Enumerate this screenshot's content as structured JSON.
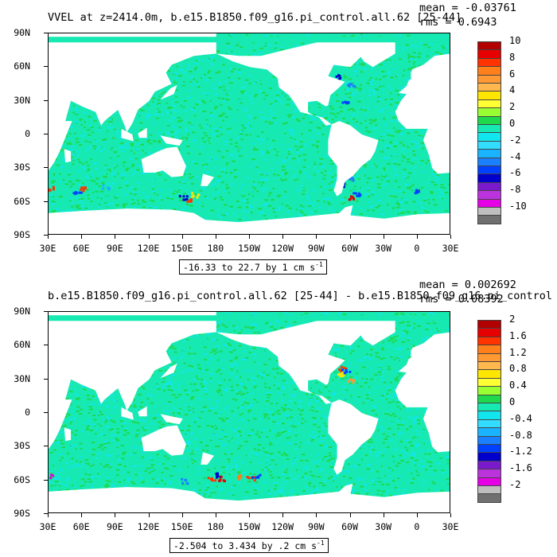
{
  "colors": {
    "ocean_base": "#17e9b3",
    "positive_low": "#1ed94c",
    "negative_low": "#11e6ee",
    "land": "#ffffff"
  },
  "panels": [
    {
      "title": "VVEL at z=2414.0m, b.e15.B1850.f09_g16.pi_control.all.62 [25-44]",
      "mean": "mean = -0.03761",
      "rms": "rms = 0.6943",
      "range": "-16.33 to 22.7 by 1 cm s",
      "range_sup": "-1",
      "lat_labels": [
        "90N",
        "60N",
        "30N",
        "0",
        "30S",
        "60S",
        "90S"
      ],
      "lon_labels": [
        "30E",
        "60E",
        "90E",
        "120E",
        "150E",
        "180",
        "150W",
        "120W",
        "90W",
        "60W",
        "30W",
        "0",
        "30E"
      ],
      "colorbar_labels": [
        "10",
        "8",
        "6",
        "4",
        "2",
        "0",
        "-2",
        "-4",
        "-6",
        "-8",
        "-10"
      ],
      "colorbar_colors": [
        "#b20000",
        "#e60000",
        "#ff3300",
        "#ff7f1a",
        "#ff9933",
        "#ffb84d",
        "#ffe600",
        "#ffff33",
        "#99ff33",
        "#1ed94c",
        "#17e9b3",
        "#11e6ee",
        "#33ddff",
        "#1ab3ff",
        "#1a80ff",
        "#0040ff",
        "#0000cc",
        "#7a1acc",
        "#bb33dd",
        "#e600e6",
        "#bfbfbf",
        "#707070"
      ]
    },
    {
      "title": "b.e15.B1850.f09_g16.pi_control.all.62 [25-44] - b.e15.B1850.f09_g16.pi_control",
      "mean": "mean = 0.002692",
      "rms": "rms = 0.08392",
      "range": "-2.504 to 3.434 by .2 cm s",
      "range_sup": "-1",
      "lat_labels": [
        "90N",
        "60N",
        "30N",
        "0",
        "30S",
        "60S",
        "90S"
      ],
      "lon_labels": [
        "30E",
        "60E",
        "90E",
        "120E",
        "150E",
        "180",
        "150W",
        "120W",
        "90W",
        "60W",
        "30W",
        "0",
        "30E"
      ],
      "colorbar_labels": [
        "2",
        "1.6",
        "1.2",
        "0.8",
        "0.4",
        "0",
        "-0.4",
        "-0.8",
        "-1.2",
        "-1.6",
        "-2"
      ],
      "colorbar_colors": [
        "#b20000",
        "#e60000",
        "#ff3300",
        "#ff7f1a",
        "#ff9933",
        "#ffb84d",
        "#ffe600",
        "#ffff33",
        "#99ff33",
        "#1ed94c",
        "#17e9b3",
        "#11e6ee",
        "#33ddff",
        "#1ab3ff",
        "#1a80ff",
        "#0040ff",
        "#0000cc",
        "#7a1acc",
        "#bb33dd",
        "#e600e6",
        "#bfbfbf",
        "#707070"
      ]
    }
  ]
}
